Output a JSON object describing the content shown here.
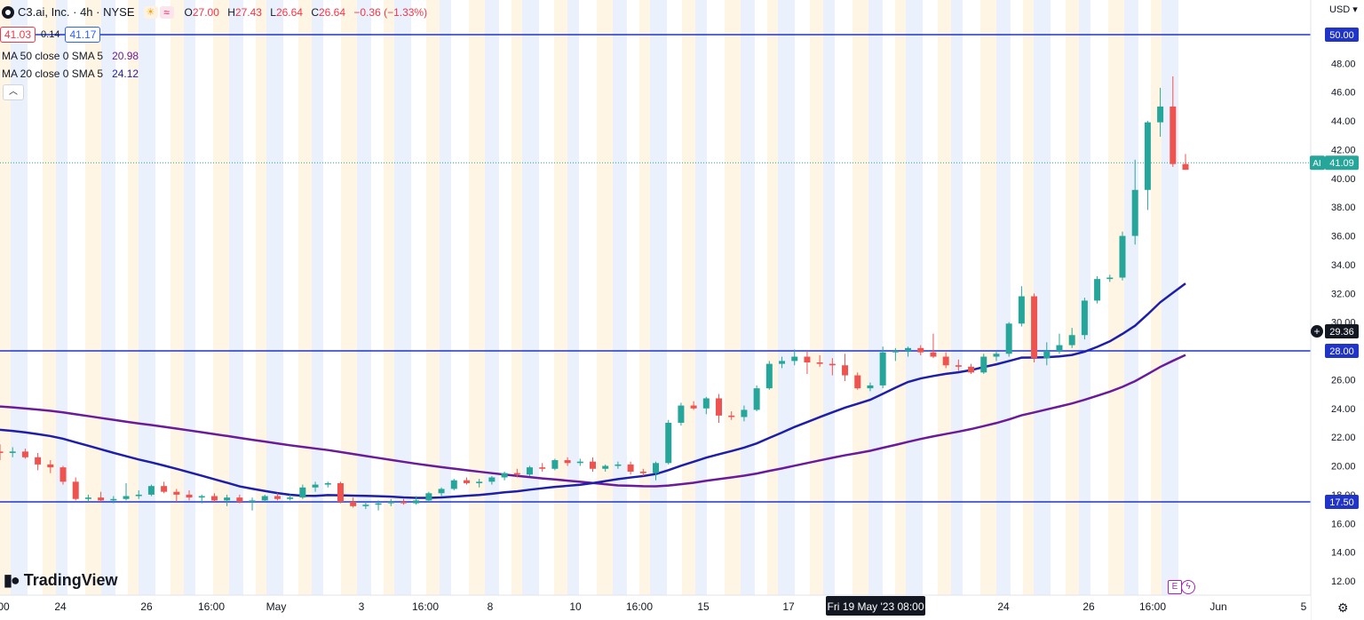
{
  "header": {
    "symbol": "C3.ai, Inc. · 4h · NYSE",
    "ohlc": [
      {
        "label": "O",
        "value": "27.00"
      },
      {
        "label": "H",
        "value": "27.43"
      },
      {
        "label": "L",
        "value": "26.64"
      },
      {
        "label": "C",
        "value": "26.64"
      }
    ],
    "change": "−0.36 (−1.33%)"
  },
  "quote": {
    "bid": "41.03",
    "spread": "0.14",
    "ask": "41.17"
  },
  "indicators": [
    {
      "label": "MA 50 close 0 SMA 5",
      "value": "20.98",
      "color": "#6a1b9a"
    },
    {
      "label": "MA 20 close 0 SMA 5",
      "value": "24.12",
      "color": "#1e1ea8"
    }
  ],
  "currency": "USD",
  "brand": "TradingView",
  "chart_data": {
    "type": "candlestick",
    "price_axis": {
      "min": 11,
      "max": 51.5,
      "ticks": [
        12,
        14,
        16,
        18,
        20,
        22,
        24,
        26,
        28,
        30,
        32,
        34,
        36,
        38,
        40,
        42,
        44,
        46,
        48
      ]
    },
    "time_labels": [
      "00",
      "24",
      "26",
      "16:00",
      "May",
      "3",
      "16:00",
      "8",
      "10",
      "16:00",
      "15",
      "17",
      "Fri 19 May '23   08:00",
      "24",
      "26",
      "16:00",
      "Jun",
      "5"
    ],
    "horizontal_lines": [
      {
        "price": 50.0,
        "label": "50.00"
      },
      {
        "price": 28.0,
        "label": "28.00"
      },
      {
        "price": 17.5,
        "label": "17.50"
      }
    ],
    "last_price": {
      "symbol": "AI",
      "price": 41.09,
      "label": "41.09"
    },
    "crosshair_price": {
      "price": 29.36,
      "label": "29.36"
    },
    "colors": {
      "up": "#26a69a",
      "down": "#ef5350",
      "ma50": "#6a1b9a",
      "ma20": "#1e1ea8",
      "hline": "#2035c8"
    },
    "candles": [
      [
        21.0,
        21.5,
        20.4,
        20.9
      ],
      [
        20.9,
        21.3,
        20.6,
        21.0
      ],
      [
        21.0,
        21.2,
        20.5,
        20.6
      ],
      [
        20.6,
        20.9,
        19.7,
        20.1
      ],
      [
        20.1,
        20.4,
        19.5,
        19.9
      ],
      [
        19.9,
        20.0,
        18.7,
        18.9
      ],
      [
        18.9,
        19.2,
        17.6,
        17.7
      ],
      [
        17.7,
        18.0,
        17.5,
        17.8
      ],
      [
        17.8,
        18.2,
        17.5,
        17.6
      ],
      [
        17.6,
        17.9,
        17.4,
        17.7
      ],
      [
        17.7,
        18.8,
        17.6,
        17.9
      ],
      [
        17.9,
        18.3,
        17.7,
        18.0
      ],
      [
        18.0,
        18.7,
        17.9,
        18.6
      ],
      [
        18.6,
        18.9,
        18.1,
        18.2
      ],
      [
        18.2,
        18.4,
        17.5,
        18.0
      ],
      [
        18.0,
        18.3,
        17.6,
        17.8
      ],
      [
        17.8,
        18.0,
        17.4,
        17.9
      ],
      [
        17.9,
        18.1,
        17.5,
        17.6
      ],
      [
        17.6,
        18.0,
        17.2,
        17.8
      ],
      [
        17.8,
        18.0,
        17.4,
        17.5
      ],
      [
        17.5,
        17.8,
        16.9,
        17.6
      ],
      [
        17.6,
        18.0,
        17.5,
        17.9
      ],
      [
        17.9,
        18.1,
        17.6,
        17.7
      ],
      [
        17.7,
        18.0,
        17.6,
        17.8
      ],
      [
        17.8,
        18.7,
        17.7,
        18.5
      ],
      [
        18.5,
        18.9,
        18.2,
        18.7
      ],
      [
        18.7,
        18.9,
        18.5,
        18.8
      ],
      [
        18.8,
        18.9,
        17.4,
        17.5
      ],
      [
        17.5,
        17.8,
        17.1,
        17.2
      ],
      [
        17.2,
        17.5,
        17.0,
        17.3
      ],
      [
        17.3,
        17.6,
        16.9,
        17.4
      ],
      [
        17.4,
        17.7,
        17.2,
        17.5
      ],
      [
        17.5,
        17.7,
        17.3,
        17.4
      ],
      [
        17.4,
        17.9,
        17.3,
        17.6
      ],
      [
        17.6,
        18.2,
        17.5,
        18.1
      ],
      [
        18.1,
        18.5,
        17.9,
        18.4
      ],
      [
        18.4,
        19.1,
        18.3,
        19.0
      ],
      [
        19.0,
        19.2,
        18.7,
        18.8
      ],
      [
        18.8,
        19.1,
        18.5,
        18.9
      ],
      [
        18.9,
        19.3,
        18.7,
        19.2
      ],
      [
        19.2,
        19.6,
        19.0,
        19.5
      ],
      [
        19.5,
        19.8,
        19.2,
        19.4
      ],
      [
        19.4,
        20.0,
        19.3,
        19.9
      ],
      [
        19.9,
        20.2,
        19.6,
        19.8
      ],
      [
        19.8,
        20.5,
        19.7,
        20.4
      ],
      [
        20.4,
        20.6,
        20.0,
        20.2
      ],
      [
        20.2,
        20.5,
        20.0,
        20.3
      ],
      [
        20.3,
        20.6,
        19.6,
        19.8
      ],
      [
        19.8,
        20.1,
        19.6,
        20.0
      ],
      [
        20.0,
        20.3,
        19.8,
        20.1
      ],
      [
        20.1,
        20.3,
        19.4,
        19.6
      ],
      [
        19.6,
        19.8,
        19.3,
        19.5
      ],
      [
        19.5,
        20.3,
        19.0,
        20.2
      ],
      [
        20.2,
        23.2,
        20.1,
        23.0
      ],
      [
        23.0,
        24.4,
        22.8,
        24.2
      ],
      [
        24.2,
        24.5,
        23.9,
        24.0
      ],
      [
        24.0,
        24.8,
        23.6,
        24.7
      ],
      [
        24.7,
        25.0,
        23.0,
        23.5
      ],
      [
        23.5,
        23.8,
        23.2,
        23.4
      ],
      [
        23.4,
        24.2,
        23.1,
        23.9
      ],
      [
        23.9,
        25.6,
        23.8,
        25.4
      ],
      [
        25.4,
        27.3,
        25.3,
        27.1
      ],
      [
        27.1,
        27.6,
        26.8,
        27.3
      ],
      [
        27.3,
        28.1,
        27.0,
        27.6
      ],
      [
        27.6,
        28.0,
        26.4,
        27.2
      ],
      [
        27.2,
        27.7,
        26.9,
        27.1
      ],
      [
        27.1,
        27.5,
        26.3,
        27.0
      ],
      [
        27.0,
        27.8,
        25.9,
        26.3
      ],
      [
        26.3,
        26.5,
        25.3,
        25.4
      ],
      [
        25.4,
        25.8,
        25.2,
        25.6
      ],
      [
        25.6,
        28.3,
        25.4,
        27.9
      ],
      [
        27.9,
        28.2,
        27.3,
        28.0
      ],
      [
        28.0,
        28.3,
        27.6,
        28.2
      ],
      [
        28.2,
        28.4,
        27.7,
        27.9
      ],
      [
        27.9,
        29.2,
        27.5,
        27.6
      ],
      [
        27.6,
        27.9,
        26.8,
        27.0
      ],
      [
        27.0,
        27.4,
        26.6,
        26.9
      ],
      [
        26.9,
        27.1,
        26.4,
        26.5
      ],
      [
        26.5,
        27.8,
        26.4,
        27.6
      ],
      [
        27.6,
        28.0,
        27.3,
        27.8
      ],
      [
        27.8,
        30.0,
        27.6,
        29.9
      ],
      [
        29.9,
        32.5,
        29.7,
        31.8
      ],
      [
        31.8,
        32.0,
        27.2,
        27.5
      ],
      [
        27.5,
        28.6,
        27.0,
        28.0
      ],
      [
        28.0,
        29.2,
        27.8,
        28.4
      ],
      [
        28.4,
        29.6,
        28.2,
        29.1
      ],
      [
        29.1,
        31.7,
        28.8,
        31.5
      ],
      [
        31.5,
        33.2,
        31.3,
        33.0
      ],
      [
        33.0,
        33.3,
        32.8,
        33.1
      ],
      [
        33.1,
        36.3,
        32.9,
        36.0
      ],
      [
        36.0,
        41.3,
        35.4,
        39.2
      ],
      [
        39.2,
        44.0,
        37.8,
        43.9
      ],
      [
        43.9,
        46.3,
        42.9,
        45.0
      ],
      [
        45.0,
        47.1,
        40.8,
        41.0
      ],
      [
        41.0,
        41.7,
        40.6,
        40.6
      ]
    ]
  }
}
